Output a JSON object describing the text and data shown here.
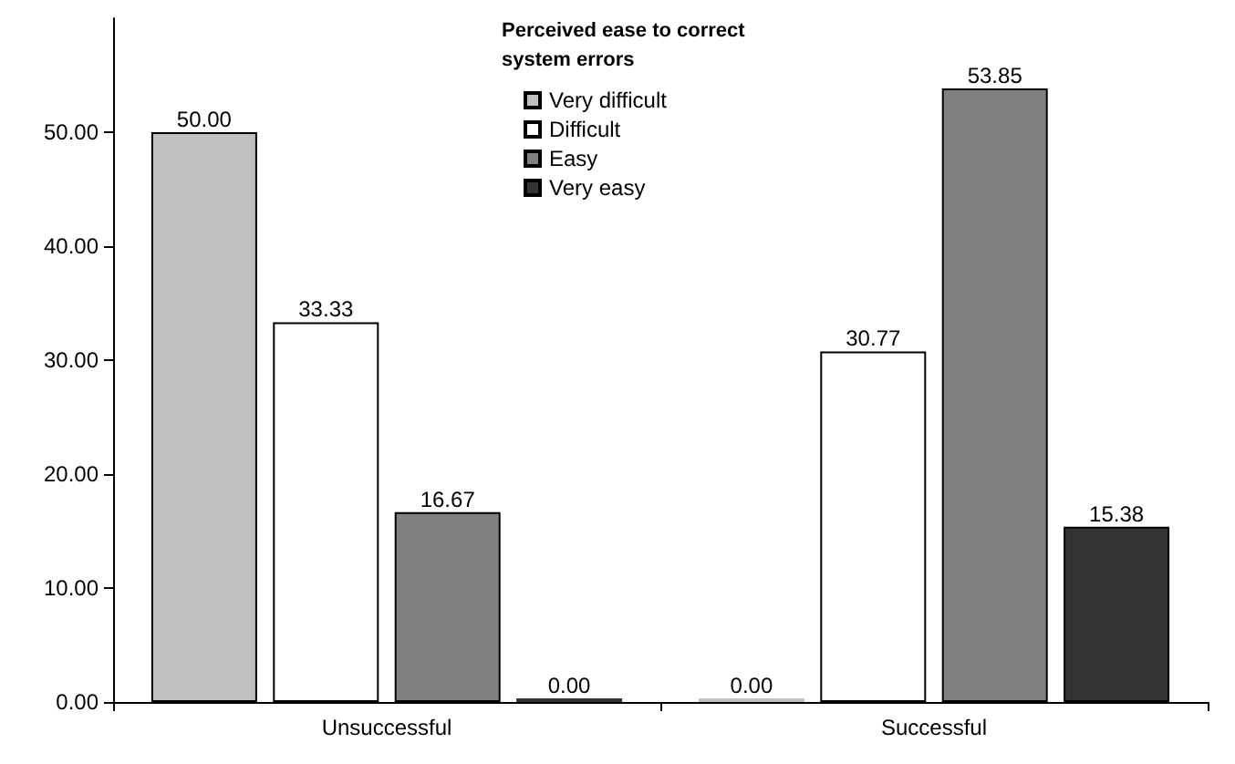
{
  "chart_data": {
    "type": "bar",
    "legend_title": "Perceived ease to correct system errors",
    "categories": [
      "Unsuccessful",
      "Successful"
    ],
    "series": [
      {
        "name": "Very difficult",
        "color": "#c0c0c0",
        "values": [
          50,
          0
        ],
        "value_labels": [
          "50.00",
          "0.00"
        ]
      },
      {
        "name": "Difficult",
        "color": "#ffffff",
        "values": [
          33.33,
          30.77
        ],
        "value_labels": [
          "33.33",
          "30.77"
        ]
      },
      {
        "name": "Easy",
        "color": "#808080",
        "values": [
          16.67,
          53.85
        ],
        "value_labels": [
          "16.67",
          "53.85"
        ]
      },
      {
        "name": "Very easy",
        "color": "#333333",
        "values": [
          0,
          15.38
        ],
        "value_labels": [
          "0.00",
          "15.38"
        ]
      }
    ],
    "ylim": [
      0,
      60
    ],
    "yticks": [
      {
        "value": 0,
        "label": "0.00"
      },
      {
        "value": 10,
        "label": "10.00"
      },
      {
        "value": 20,
        "label": "20.00"
      },
      {
        "value": 30,
        "label": "30.00"
      },
      {
        "value": 40,
        "label": "40.00"
      },
      {
        "value": 50,
        "label": "50.00"
      }
    ],
    "grid": false,
    "legend": "top"
  }
}
